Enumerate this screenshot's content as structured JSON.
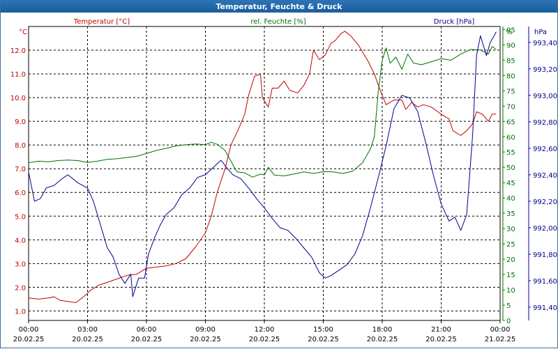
{
  "window": {
    "title": "Temperatur, Feuchte & Druck"
  },
  "colors": {
    "temperature": "#c00000",
    "humidity": "#007000",
    "pressure": "#00008b",
    "grid": "#000000",
    "text": "#000000",
    "titlebar": "#1f66a8"
  },
  "chart_data": {
    "type": "line",
    "title": "Temperatur, Feuchte & Druck",
    "x_range_hours": [
      0,
      24
    ],
    "x_ticks": [
      {
        "h": 0,
        "time": "00:00",
        "date": "20.02.25"
      },
      {
        "h": 3,
        "time": "03:00",
        "date": "20.02.25"
      },
      {
        "h": 6,
        "time": "06:00",
        "date": "20.02.25"
      },
      {
        "h": 9,
        "time": "09:00",
        "date": "20.02.25"
      },
      {
        "h": 12,
        "time": "12:00",
        "date": "20.02.25"
      },
      {
        "h": 15,
        "time": "15:00",
        "date": "20.02.25"
      },
      {
        "h": 18,
        "time": "18:00",
        "date": "20.02.25"
      },
      {
        "h": 21,
        "time": "21:00",
        "date": "20.02.25"
      },
      {
        "h": 24,
        "time": "00:00",
        "date": "21.02.25"
      }
    ],
    "axes": {
      "temperature": {
        "unit": "°C",
        "label": "Temperatur [°C]",
        "range": [
          0.6,
          13.0
        ],
        "ticks": [
          "1.0",
          "2.0",
          "3.0",
          "4.0",
          "5.0",
          "6.0",
          "7.0",
          "8.0",
          "9.0",
          "10.0",
          "11.0",
          "12.0"
        ]
      },
      "humidity": {
        "unit": "%",
        "label": "rel. Feuchte [%]",
        "range": [
          0,
          96
        ],
        "ticks": [
          "0",
          "5",
          "10",
          "15",
          "20",
          "25",
          "30",
          "35",
          "40",
          "45",
          "50",
          "55",
          "60",
          "65",
          "70",
          "75",
          "80",
          "85",
          "90",
          "95"
        ]
      },
      "pressure": {
        "unit": "hPa",
        "label": "Druck [hPa]",
        "range": [
          991.3,
          993.52
        ],
        "ticks": [
          "991,40",
          "991,60",
          "991,80",
          "992,00",
          "992,20",
          "992,40",
          "992,60",
          "992,80",
          "993,00",
          "993,20",
          "993,40"
        ]
      }
    },
    "series": [
      {
        "name": "Temperatur [°C]",
        "axis": "temperature",
        "points": [
          [
            0,
            1.55
          ],
          [
            0.5,
            1.5
          ],
          [
            1,
            1.55
          ],
          [
            1.3,
            1.6
          ],
          [
            1.6,
            1.45
          ],
          [
            2,
            1.4
          ],
          [
            2.4,
            1.35
          ],
          [
            2.8,
            1.6
          ],
          [
            3.2,
            1.9
          ],
          [
            3.6,
            2.1
          ],
          [
            4,
            2.2
          ],
          [
            4.5,
            2.35
          ],
          [
            5,
            2.5
          ],
          [
            5.5,
            2.55
          ],
          [
            6,
            2.8
          ],
          [
            6.5,
            2.85
          ],
          [
            7,
            2.9
          ],
          [
            7.5,
            3.0
          ],
          [
            8,
            3.2
          ],
          [
            8.5,
            3.7
          ],
          [
            9,
            4.3
          ],
          [
            9.3,
            5.0
          ],
          [
            9.6,
            6.0
          ],
          [
            10,
            7.0
          ],
          [
            10.3,
            8.0
          ],
          [
            10.7,
            8.7
          ],
          [
            11,
            9.3
          ],
          [
            11.2,
            10.1
          ],
          [
            11.5,
            10.9
          ],
          [
            11.8,
            11.0
          ],
          [
            11.9,
            10.0
          ],
          [
            12.2,
            9.6
          ],
          [
            12.4,
            10.4
          ],
          [
            12.7,
            10.4
          ],
          [
            13,
            10.7
          ],
          [
            13.3,
            10.3
          ],
          [
            13.7,
            10.2
          ],
          [
            14,
            10.5
          ],
          [
            14.3,
            11.0
          ],
          [
            14.5,
            12.0
          ],
          [
            14.8,
            11.6
          ],
          [
            15.1,
            11.8
          ],
          [
            15.4,
            12.3
          ],
          [
            15.6,
            12.4
          ],
          [
            15.9,
            12.7
          ],
          [
            16.1,
            12.8
          ],
          [
            16.4,
            12.6
          ],
          [
            16.8,
            12.2
          ],
          [
            17.3,
            11.5
          ],
          [
            17.6,
            11.0
          ],
          [
            17.9,
            10.3
          ],
          [
            18.2,
            9.7
          ],
          [
            18.6,
            9.9
          ],
          [
            19,
            9.9
          ],
          [
            19.2,
            9.5
          ],
          [
            19.5,
            9.8
          ],
          [
            19.8,
            9.6
          ],
          [
            20.1,
            9.7
          ],
          [
            20.5,
            9.6
          ],
          [
            21,
            9.3
          ],
          [
            21.4,
            9.1
          ],
          [
            21.6,
            8.6
          ],
          [
            22,
            8.4
          ],
          [
            22.3,
            8.6
          ],
          [
            22.6,
            8.9
          ],
          [
            22.8,
            9.4
          ],
          [
            23.1,
            9.3
          ],
          [
            23.4,
            9.0
          ],
          [
            23.6,
            9.3
          ],
          [
            23.8,
            9.3
          ]
        ]
      },
      {
        "name": "rel. Feuchte [%]",
        "axis": "humidity",
        "points": [
          [
            0,
            51.5
          ],
          [
            0.5,
            52.0
          ],
          [
            1,
            51.8
          ],
          [
            1.5,
            52.2
          ],
          [
            2,
            52.4
          ],
          [
            2.5,
            52.2
          ],
          [
            3,
            51.6
          ],
          [
            3.5,
            52.0
          ],
          [
            4,
            52.6
          ],
          [
            4.5,
            52.8
          ],
          [
            5,
            53.2
          ],
          [
            5.5,
            53.6
          ],
          [
            6,
            54.5
          ],
          [
            6.5,
            55.5
          ],
          [
            7,
            56.2
          ],
          [
            7.5,
            57.0
          ],
          [
            8,
            57.4
          ],
          [
            8.5,
            57.6
          ],
          [
            9,
            57.4
          ],
          [
            9.3,
            58.2
          ],
          [
            9.6,
            57.5
          ],
          [
            10,
            55.5
          ],
          [
            10.3,
            52.0
          ],
          [
            10.6,
            48.5
          ],
          [
            11,
            48.2
          ],
          [
            11.4,
            46.8
          ],
          [
            11.8,
            47.8
          ],
          [
            12,
            47.5
          ],
          [
            12.2,
            50.0
          ],
          [
            12.5,
            47.5
          ],
          [
            13,
            47.2
          ],
          [
            13.5,
            47.8
          ],
          [
            14,
            48.5
          ],
          [
            14.5,
            48.0
          ],
          [
            15,
            48.6
          ],
          [
            15.5,
            48.5
          ],
          [
            16,
            48.0
          ],
          [
            16.5,
            48.8
          ],
          [
            17,
            51.5
          ],
          [
            17.4,
            56.0
          ],
          [
            17.6,
            60.0
          ],
          [
            17.8,
            75.0
          ],
          [
            18,
            85.0
          ],
          [
            18.2,
            89.0
          ],
          [
            18.4,
            84.0
          ],
          [
            18.7,
            86.0
          ],
          [
            19,
            82.0
          ],
          [
            19.3,
            87.0
          ],
          [
            19.6,
            84.0
          ],
          [
            20,
            83.5
          ],
          [
            20.5,
            84.5
          ],
          [
            21,
            85.5
          ],
          [
            21.5,
            85.0
          ],
          [
            22,
            87.0
          ],
          [
            22.5,
            88.5
          ],
          [
            23,
            88.3
          ],
          [
            23.4,
            87.0
          ],
          [
            23.6,
            89.5
          ],
          [
            23.8,
            88.5
          ]
        ]
      },
      {
        "name": "Druck [hPa]",
        "axis": "pressure",
        "points": [
          [
            0,
            992.42
          ],
          [
            0.3,
            992.2
          ],
          [
            0.6,
            992.22
          ],
          [
            0.9,
            992.3
          ],
          [
            1.3,
            992.32
          ],
          [
            1.7,
            992.37
          ],
          [
            2,
            992.4
          ],
          [
            2.5,
            992.34
          ],
          [
            3,
            992.3
          ],
          [
            3.3,
            992.2
          ],
          [
            3.6,
            992.05
          ],
          [
            4,
            991.85
          ],
          [
            4.3,
            991.78
          ],
          [
            4.6,
            991.65
          ],
          [
            4.9,
            991.58
          ],
          [
            5.2,
            991.65
          ],
          [
            5.3,
            991.48
          ],
          [
            5.6,
            991.62
          ],
          [
            5.9,
            991.62
          ],
          [
            6.1,
            991.8
          ],
          [
            6.4,
            991.92
          ],
          [
            6.7,
            992.02
          ],
          [
            7,
            992.1
          ],
          [
            7.4,
            992.15
          ],
          [
            7.8,
            992.25
          ],
          [
            8.2,
            992.3
          ],
          [
            8.6,
            992.38
          ],
          [
            9,
            992.4
          ],
          [
            9.5,
            992.47
          ],
          [
            9.8,
            992.51
          ],
          [
            10.1,
            992.45
          ],
          [
            10.4,
            992.4
          ],
          [
            10.8,
            992.37
          ],
          [
            11.2,
            992.3
          ],
          [
            11.6,
            992.22
          ],
          [
            12,
            992.15
          ],
          [
            12.4,
            992.07
          ],
          [
            12.8,
            992.0
          ],
          [
            13.2,
            991.98
          ],
          [
            13.6,
            991.92
          ],
          [
            14,
            991.85
          ],
          [
            14.4,
            991.78
          ],
          [
            14.8,
            991.66
          ],
          [
            15.1,
            991.62
          ],
          [
            15.4,
            991.64
          ],
          [
            15.8,
            991.68
          ],
          [
            16.2,
            991.72
          ],
          [
            16.6,
            991.8
          ],
          [
            17,
            991.94
          ],
          [
            17.4,
            992.15
          ],
          [
            17.8,
            992.38
          ],
          [
            18.2,
            992.62
          ],
          [
            18.6,
            992.9
          ],
          [
            19,
            993.0
          ],
          [
            19.4,
            992.98
          ],
          [
            19.8,
            992.88
          ],
          [
            20.2,
            992.65
          ],
          [
            20.6,
            992.4
          ],
          [
            21,
            992.18
          ],
          [
            21.4,
            992.05
          ],
          [
            21.7,
            992.08
          ],
          [
            22,
            991.98
          ],
          [
            22.3,
            992.1
          ],
          [
            22.6,
            992.7
          ],
          [
            22.8,
            993.3
          ],
          [
            23,
            993.45
          ],
          [
            23.3,
            993.3
          ],
          [
            23.5,
            993.4
          ],
          [
            23.7,
            993.45
          ],
          [
            23.8,
            993.48
          ]
        ]
      }
    ]
  }
}
